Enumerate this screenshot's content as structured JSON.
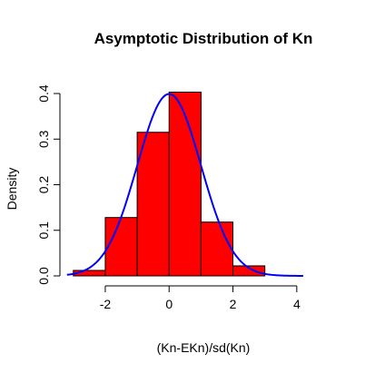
{
  "chart_data": {
    "type": "bar",
    "title": "Asymptotic Distribution of Kn",
    "xlabel": "(Kn-EKn)/sd(Kn)",
    "ylabel": "Density",
    "xlim": [
      -3.25,
      5.0
    ],
    "ylim": [
      0,
      0.42
    ],
    "x_ticks": [
      -2,
      0,
      2,
      4
    ],
    "y_ticks": [
      0.0,
      0.1,
      0.2,
      0.3,
      0.4
    ],
    "bins": [
      {
        "x0": -3,
        "x1": -2,
        "density": 0.012
      },
      {
        "x0": -2,
        "x1": -1,
        "density": 0.128
      },
      {
        "x0": -1,
        "x1": 0,
        "density": 0.315
      },
      {
        "x0": 0,
        "x1": 1,
        "density": 0.403
      },
      {
        "x0": 1,
        "x1": 2,
        "density": 0.118
      },
      {
        "x0": 2,
        "x1": 3,
        "density": 0.022
      }
    ],
    "curve": {
      "type": "normal-density",
      "mean": 0,
      "sd": 1,
      "x_range": [
        -3.2,
        4.2
      ]
    },
    "grid": false,
    "colors": {
      "bars": "#ff0000",
      "bar_border": "#000000",
      "curve": "#0000ff"
    }
  }
}
